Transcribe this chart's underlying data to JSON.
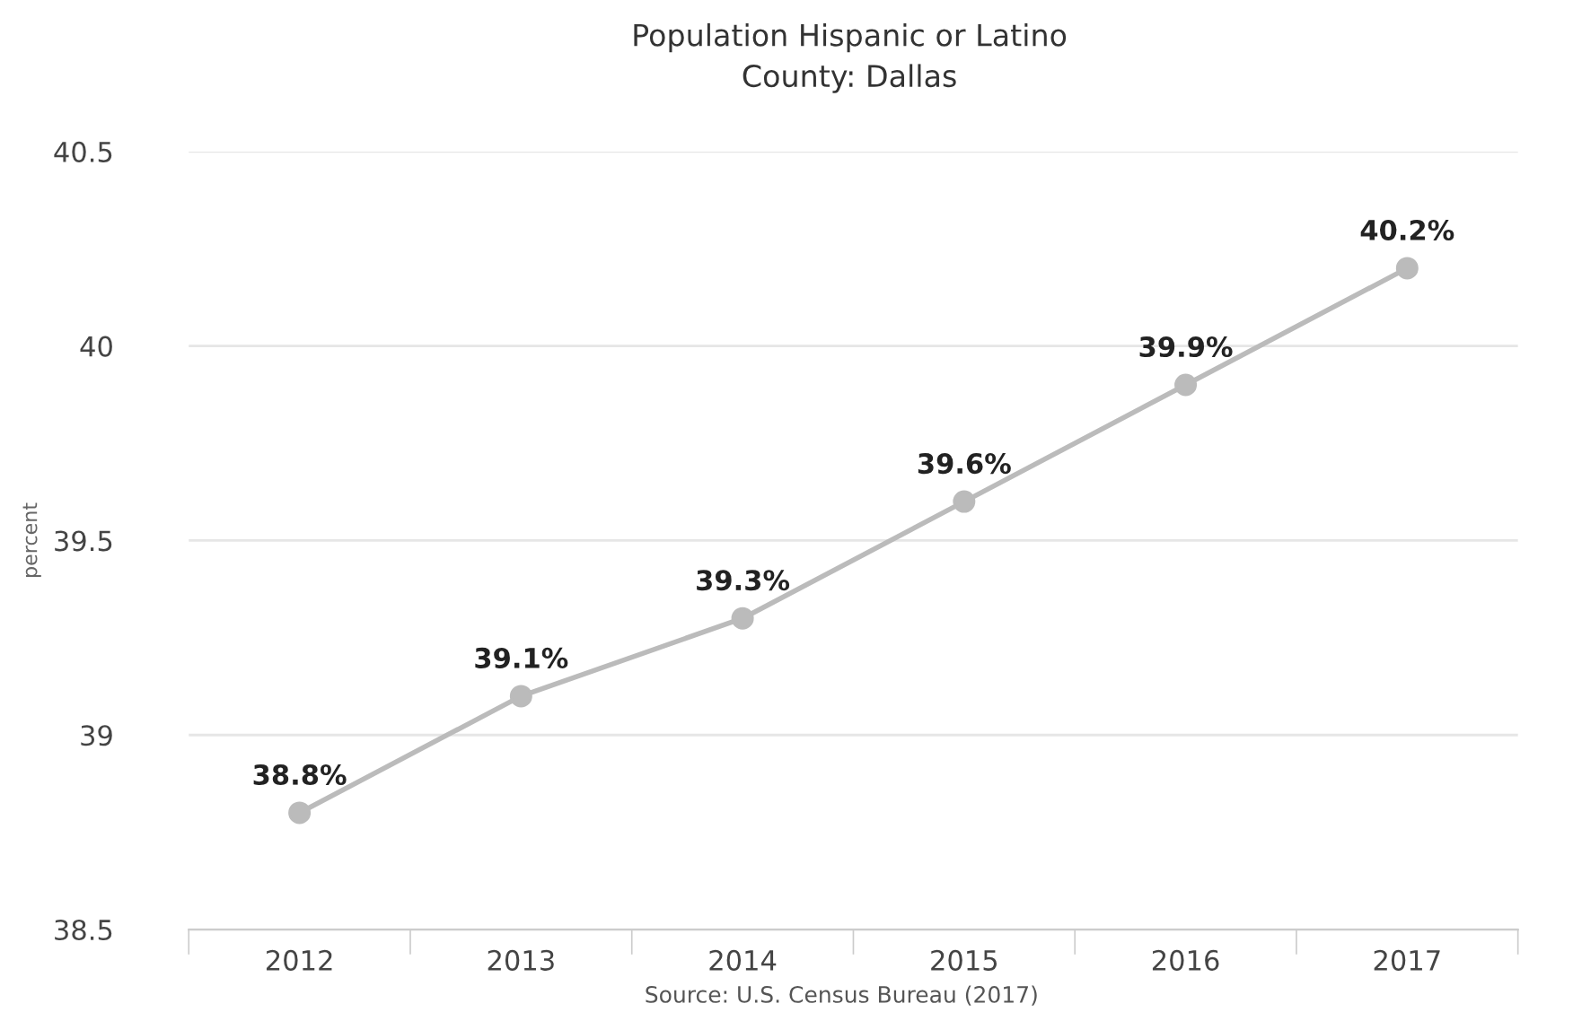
{
  "chart_data": {
    "type": "line",
    "title": "Population Hispanic or Latino",
    "subtitle": "County: Dallas",
    "ylabel": "percent",
    "annotations": [
      "Source: U.S. Census Bureau (2017)"
    ],
    "categories": [
      "2012",
      "2013",
      "2014",
      "2015",
      "2016",
      "2017"
    ],
    "series": [
      {
        "color": "#bbbbbb",
        "values": [
          38.8,
          39.1,
          39.3,
          39.6,
          39.9,
          40.2
        ],
        "value_labels": [
          "38.8%",
          "39.1%",
          "39.3%",
          "39.6%",
          "39.9%",
          "40.2%"
        ]
      }
    ],
    "ylim": [
      38.5,
      40.5
    ],
    "yticks": [
      38.5,
      39,
      39.5,
      40,
      40.5
    ],
    "grid": "y",
    "legend": false,
    "marker": "circle",
    "line_style": "solid"
  }
}
